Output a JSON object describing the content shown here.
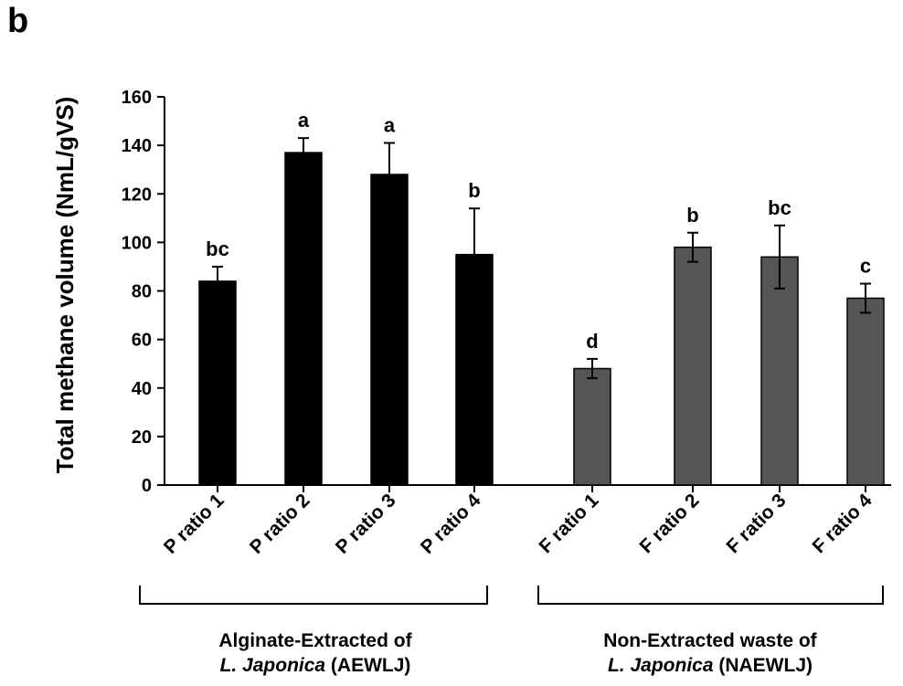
{
  "panel_label": "b",
  "chart_data": {
    "type": "bar",
    "ylabel": "Total methane volume (NmL/gVS)",
    "ylim": [
      0,
      160
    ],
    "yticks": [
      0,
      20,
      40,
      60,
      80,
      100,
      120,
      140,
      160
    ],
    "grid": false,
    "categories": [
      "P ratio 1",
      "P ratio 2",
      "P ratio 3",
      "P ratio 4",
      "F ratio 1",
      "F ratio 2",
      "F ratio 3",
      "F ratio 4"
    ],
    "values": [
      84,
      137,
      128,
      95,
      48,
      98,
      94,
      77
    ],
    "errors": [
      6,
      6,
      13,
      19,
      4,
      6,
      13,
      6
    ],
    "significance_letters": [
      "bc",
      "a",
      "a",
      "b",
      "d",
      "b",
      "bc",
      "c"
    ],
    "bar_colors": [
      "#000000",
      "#000000",
      "#000000",
      "#000000",
      "#555555",
      "#555555",
      "#555555",
      "#555555"
    ],
    "groups": [
      {
        "line1": "Alginate-Extracted of",
        "italic": "L. Japonica",
        "suffix": " (AEWLJ)",
        "categories": [
          0,
          1,
          2,
          3
        ]
      },
      {
        "line1": "Non-Extracted waste of",
        "italic": "L. Japonica",
        "suffix": " (NAEWLJ)",
        "categories": [
          4,
          5,
          6,
          7
        ]
      }
    ]
  }
}
